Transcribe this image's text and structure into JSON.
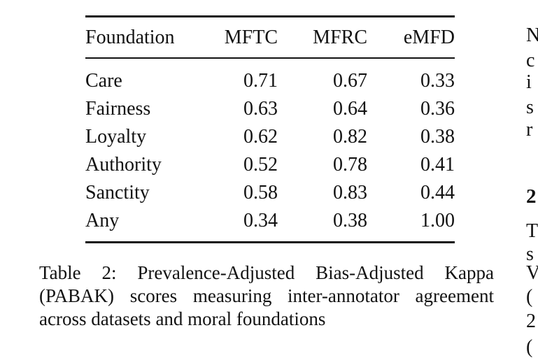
{
  "page": {
    "background_color": "#ffffff",
    "text_color": "#121212"
  },
  "table": {
    "columns": [
      "Foundation",
      "MFTC",
      "MFRC",
      "eMFD"
    ],
    "rows": [
      {
        "cells": [
          "Care",
          "0.71",
          "0.67",
          "0.33"
        ]
      },
      {
        "cells": [
          "Fairness",
          "0.63",
          "0.64",
          "0.36"
        ]
      },
      {
        "cells": [
          "Loyalty",
          "0.62",
          "0.82",
          "0.38"
        ]
      },
      {
        "cells": [
          "Authority",
          "0.52",
          "0.78",
          "0.41"
        ]
      },
      {
        "cells": [
          "Sanctity",
          "0.58",
          "0.83",
          "0.44"
        ]
      },
      {
        "cells": [
          "Any",
          "0.34",
          "0.38",
          "1.00"
        ]
      }
    ]
  },
  "caption": {
    "lines": [
      "Table 2:  Prevalence-Adjusted Bias-Adjusted Kappa",
      "(PABAK) scores measuring inter-annotator agreement",
      "across datasets and moral foundations"
    ],
    "full_text": "Table 2: Prevalence-Adjusted Bias-Adjusted Kappa (PABAK) scores measuring inter-annotator agreement across datasets and moral foundations"
  },
  "right_column_fragments": [
    {
      "char": "N"
    },
    {
      "char": "c"
    },
    {
      "char": "i"
    },
    {
      "char": "s"
    },
    {
      "char": "r"
    },
    {
      "char": "2"
    },
    {
      "char": "T"
    },
    {
      "char": "s"
    },
    {
      "char": "V"
    },
    {
      "char": "("
    },
    {
      "char": "2"
    },
    {
      "char": "("
    }
  ]
}
